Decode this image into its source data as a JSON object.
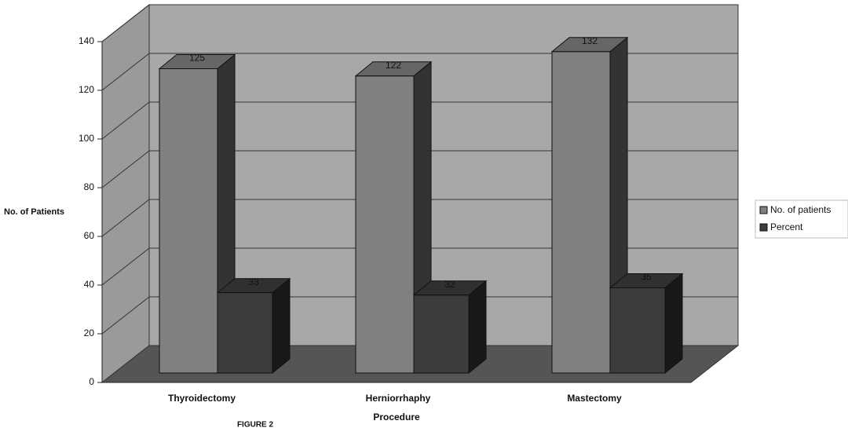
{
  "chart_data": {
    "type": "bar3d",
    "categories": [
      "Thyroidectomy",
      "Herniorrhaphy",
      "Mastectomy"
    ],
    "series": [
      {
        "name": "No. of patients",
        "color": "#808080",
        "values": [
          125,
          122,
          132
        ]
      },
      {
        "name": "Percent",
        "color": "#3c3c3c",
        "values": [
          33,
          32,
          35
        ]
      }
    ],
    "ylim": [
      0,
      140
    ],
    "yticks": [
      0,
      20,
      40,
      60,
      80,
      100,
      120,
      140
    ],
    "y_label": "No. of Patients",
    "x_label": "Procedure",
    "figure_label": "FIGURE 2",
    "grid": true,
    "legend": "right"
  }
}
